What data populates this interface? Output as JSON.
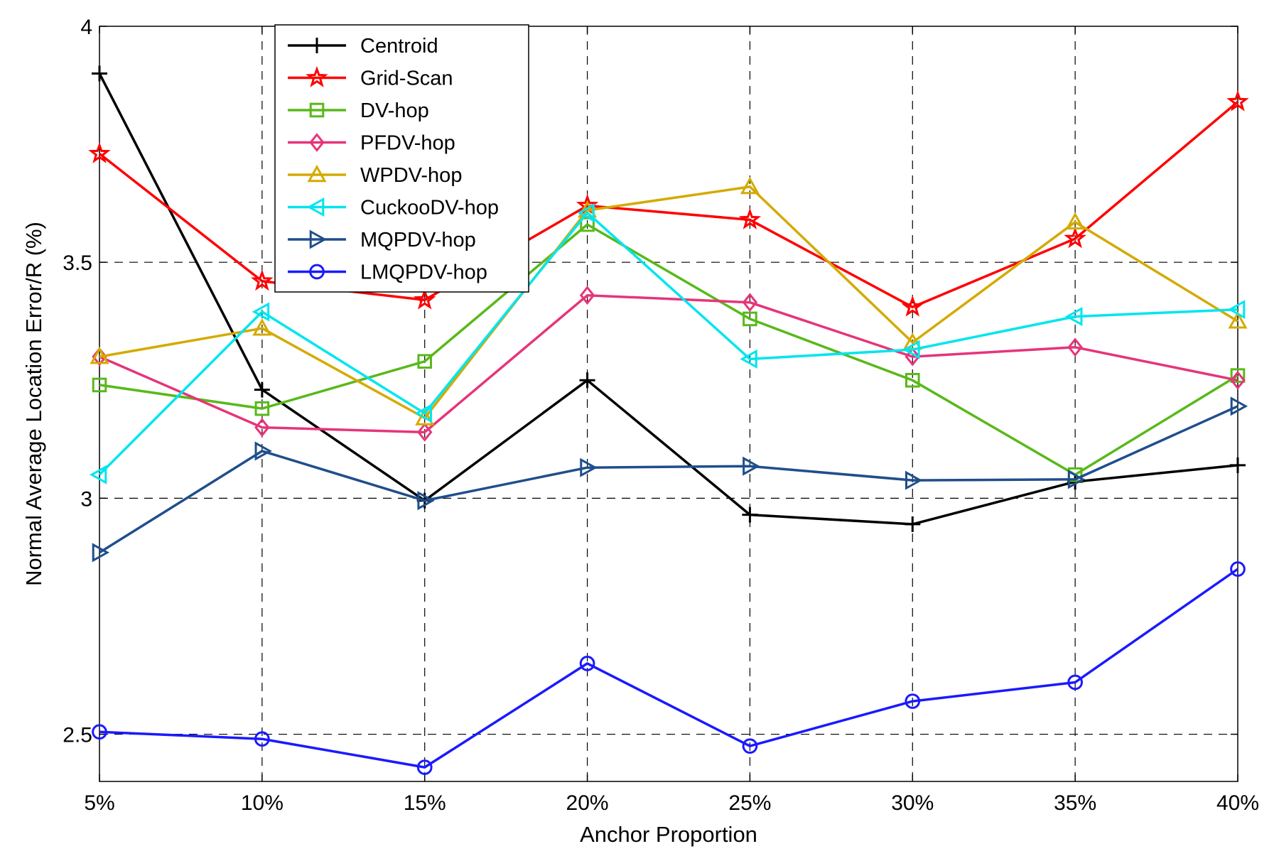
{
  "chart_data": {
    "type": "line",
    "title": "",
    "xlabel": "Anchor Proportion",
    "ylabel": "Normal Average Location Error/R (%)",
    "categories": [
      "5%",
      "10%",
      "15%",
      "20%",
      "25%",
      "30%",
      "35%",
      "40%"
    ],
    "ylim": [
      2.4,
      4.0
    ],
    "yticks": [
      2.5,
      3,
      3.5,
      4
    ],
    "ytick_labels": [
      "2.5",
      "3",
      "3.5",
      "4"
    ],
    "grid": true,
    "legend_position": "top-left",
    "series": [
      {
        "name": "Centroid",
        "color": "#000000",
        "marker": "plus",
        "values": [
          3.9,
          3.23,
          2.995,
          3.25,
          2.965,
          2.945,
          3.035,
          3.07
        ]
      },
      {
        "name": "Grid-Scan",
        "color": "#ff0000",
        "marker": "star",
        "values": [
          3.73,
          3.46,
          3.42,
          3.62,
          3.59,
          3.405,
          3.55,
          3.84
        ]
      },
      {
        "name": "DV-hop",
        "color": "#58b91a",
        "marker": "square",
        "values": [
          3.24,
          3.19,
          3.29,
          3.58,
          3.38,
          3.25,
          3.05,
          3.26
        ]
      },
      {
        "name": "PFDV-hop",
        "color": "#e6347a",
        "marker": "diamond",
        "values": [
          3.3,
          3.15,
          3.14,
          3.43,
          3.415,
          3.3,
          3.32,
          3.25
        ]
      },
      {
        "name": "WPDV-hop",
        "color": "#d4aa00",
        "marker": "triangle-up",
        "values": [
          3.3,
          3.36,
          3.17,
          3.61,
          3.66,
          3.33,
          3.585,
          3.375
        ]
      },
      {
        "name": "CuckooDV-hop",
        "color": "#00e5ee",
        "marker": "triangle-left",
        "values": [
          3.05,
          3.395,
          3.18,
          3.605,
          3.295,
          3.315,
          3.385,
          3.4
        ]
      },
      {
        "name": "MQPDV-hop",
        "color": "#1f4e8c",
        "marker": "triangle-right",
        "values": [
          2.885,
          3.1,
          2.995,
          3.065,
          3.068,
          3.038,
          3.04,
          3.195
        ]
      },
      {
        "name": "LMQPDV-hop",
        "color": "#1a1aff",
        "marker": "circle",
        "values": [
          2.505,
          2.49,
          2.43,
          2.65,
          2.475,
          2.57,
          2.61,
          2.85
        ]
      }
    ]
  }
}
